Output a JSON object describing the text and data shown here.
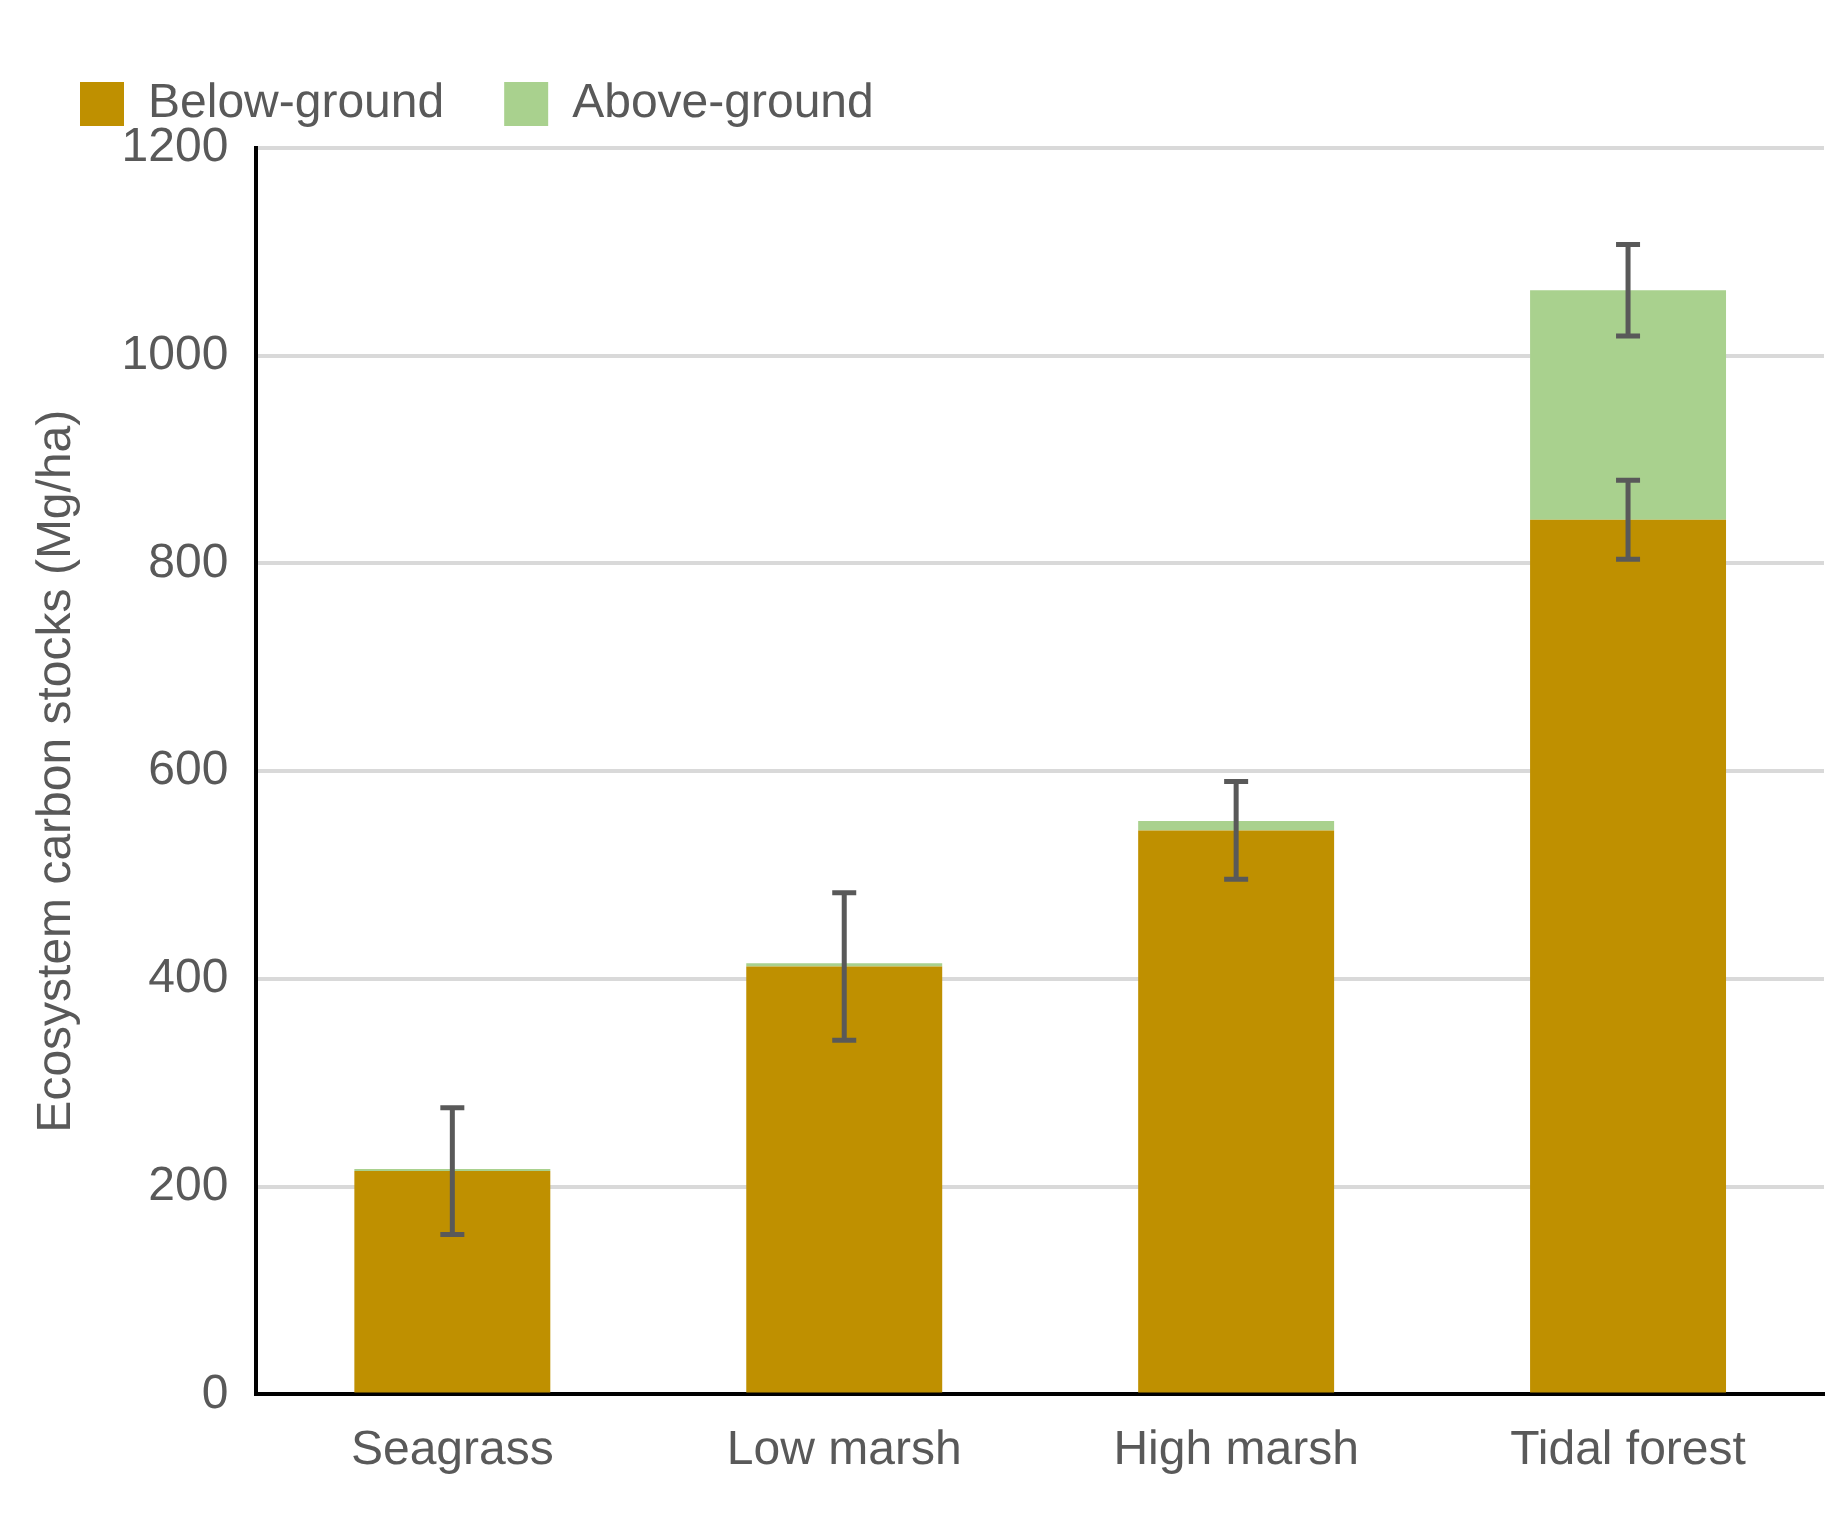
{
  "chart_data": {
    "type": "bar",
    "stacked": true,
    "ylabel": "Ecosystem carbon stocks (Mg/ha)",
    "categories": [
      "Seagrass",
      "Low marsh",
      "High marsh",
      "Tidal forest"
    ],
    "series": [
      {
        "name": "Below-ground",
        "color": "#bf9000",
        "values": [
          215,
          412,
          543,
          842
        ],
        "errors": [
          61,
          71,
          47,
          38
        ]
      },
      {
        "name": "Above-ground",
        "color": "#a9d18e",
        "values": [
          2,
          3,
          9,
          221
        ],
        "errors": [
          null,
          null,
          null,
          44
        ]
      }
    ],
    "ylim": [
      0,
      1200
    ],
    "yticks": [
      0,
      200,
      400,
      600,
      800,
      1000,
      1200
    ],
    "grid": "y",
    "legend": "top left"
  }
}
